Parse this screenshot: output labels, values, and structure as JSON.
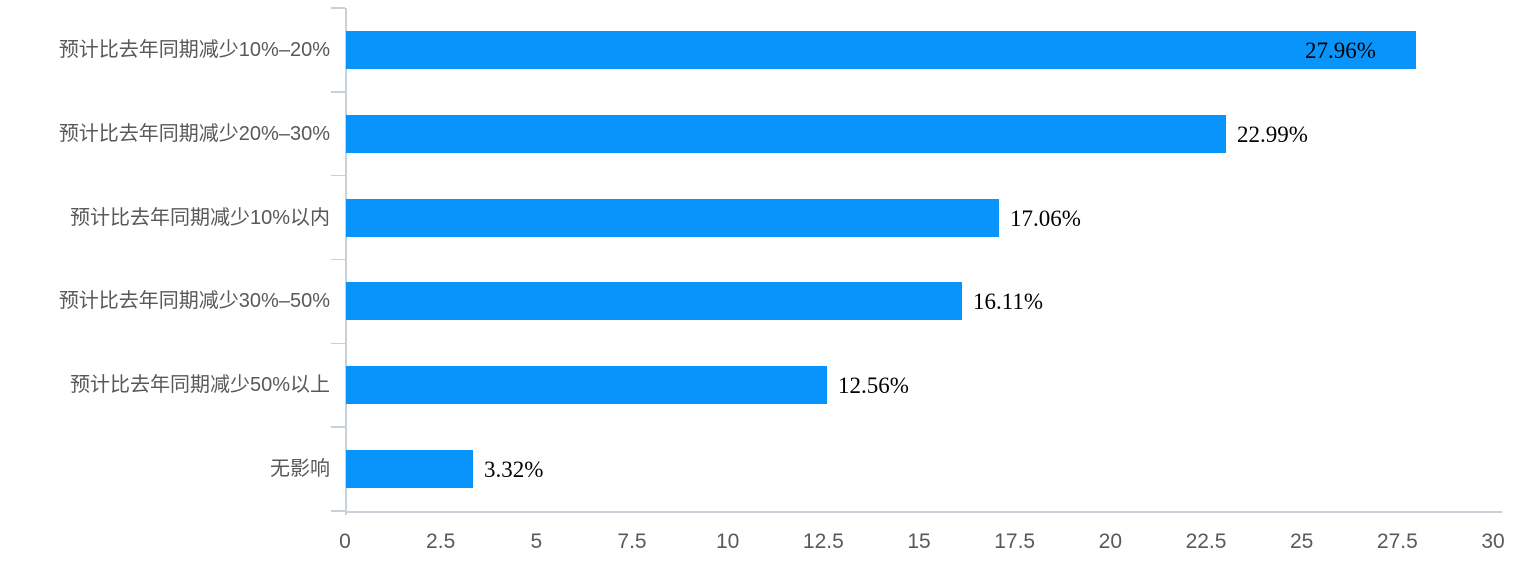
{
  "chart_data": {
    "type": "bar",
    "orientation": "horizontal",
    "title": "",
    "xlabel": "",
    "ylabel": "",
    "categories": [
      "预计比去年同期减少10%–20%",
      "预计比去年同期减少20%–30%",
      "预计比去年同期减少10%以内",
      "预计比去年同期减少30%–50%",
      "预计比去年同期减少50%以上",
      "无影响"
    ],
    "values": [
      27.96,
      22.99,
      17.06,
      16.11,
      12.56,
      3.32
    ],
    "value_labels": [
      "27.96%",
      "22.99%",
      "17.06%",
      "16.11%",
      "12.56%",
      "3.32%"
    ],
    "xlim": [
      0,
      30
    ],
    "x_tick_labels": [
      "0",
      "2.5",
      "5",
      "7.5",
      "10",
      "12.5",
      "15",
      "17.5",
      "20",
      "22.5",
      "25",
      "27.5",
      "30"
    ],
    "grid": "off",
    "legend": "none",
    "colors": {
      "bar": "#0894fb",
      "axis": "#c9d0d8",
      "category_text": "#595959",
      "tick_text": "#595959",
      "value_text": "#000000",
      "background": "#ffffff"
    }
  }
}
